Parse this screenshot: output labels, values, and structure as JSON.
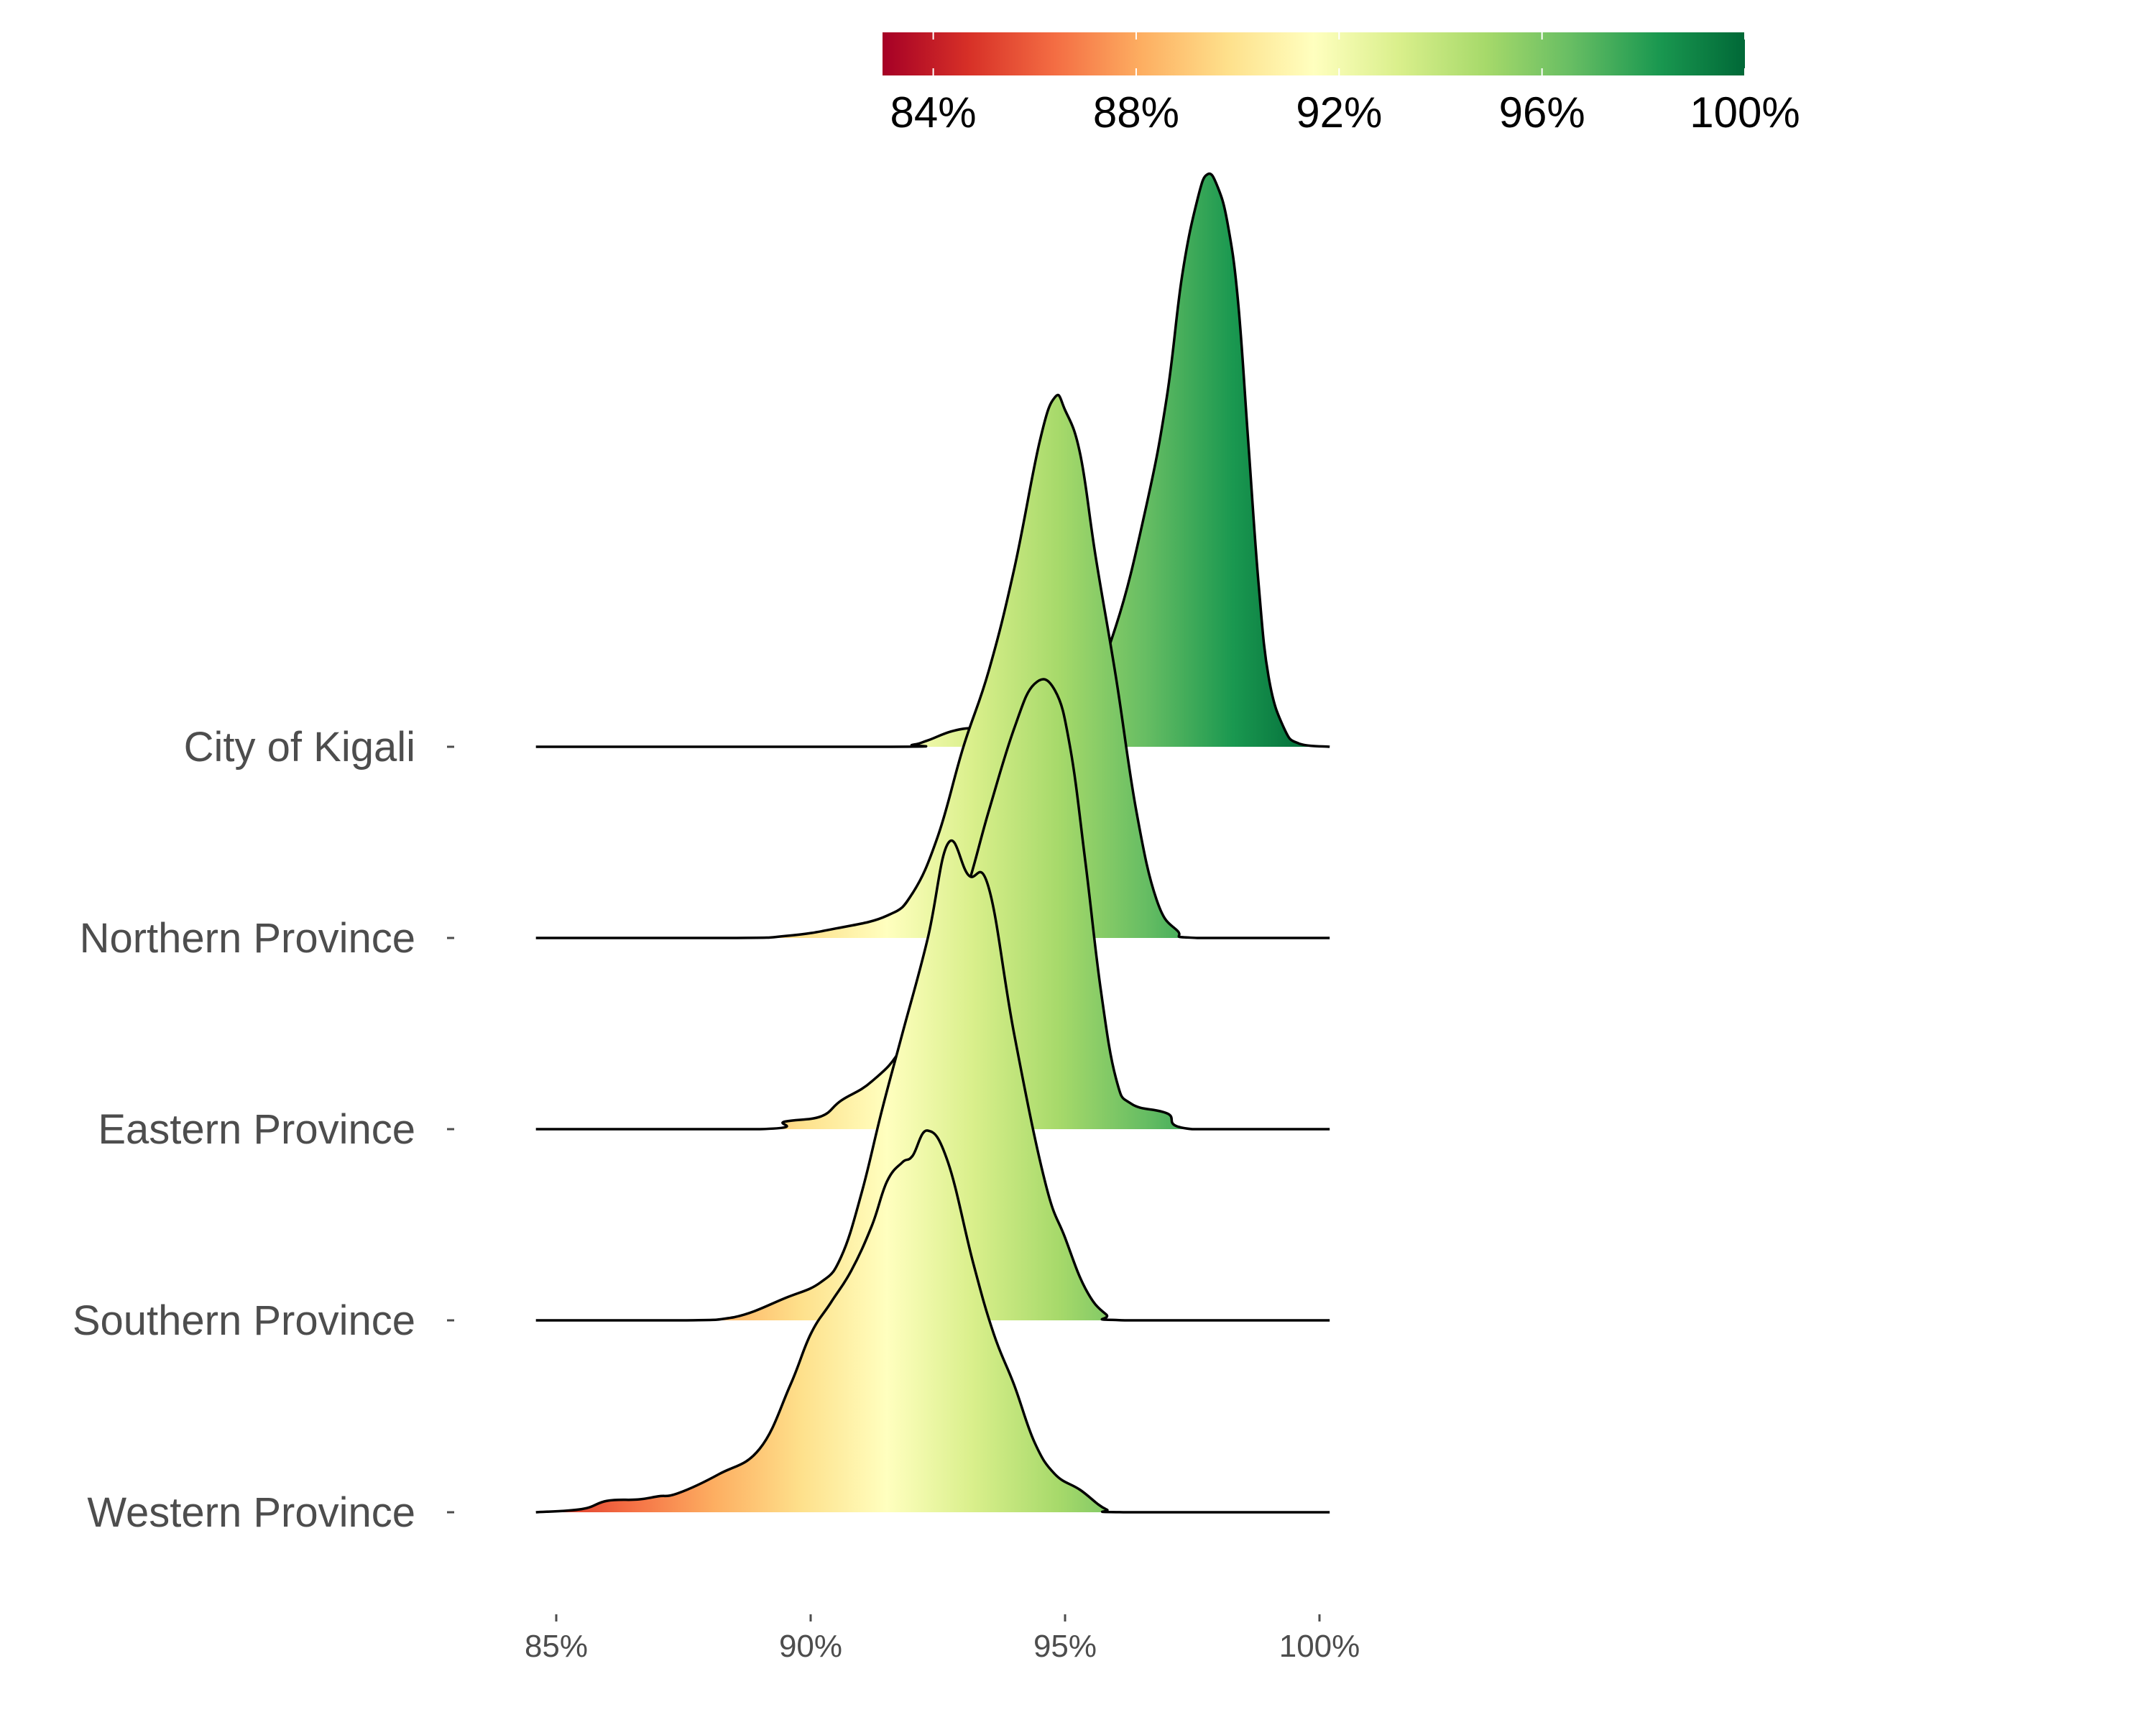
{
  "chart_data": {
    "type": "ridgeline",
    "title": "",
    "xlabel": "",
    "ylabel": "",
    "x_range": [
      84.5,
      100.2
    ],
    "x_ticks": [
      85,
      90,
      95,
      100
    ],
    "x_tick_labels": [
      "85%",
      "90%",
      "95%",
      "100%"
    ],
    "categories": [
      "City of Kigali",
      "Northern Province",
      "Eastern Province",
      "Southern Province",
      "Western Province"
    ],
    "fill_scale": {
      "type": "continuous",
      "palette": "RdYlGn",
      "domain": [
        83.0,
        100.0
      ],
      "ticks": [
        84,
        88,
        92,
        96,
        100
      ],
      "tick_labels": [
        "84%",
        "88%",
        "92%",
        "96%",
        "100%"
      ],
      "colors": [
        "#a50026",
        "#d73027",
        "#f46d43",
        "#fdae61",
        "#fee08b",
        "#ffffbf",
        "#d9ef8b",
        "#a6d96a",
        "#66bd63",
        "#1a9850",
        "#006837"
      ]
    },
    "series": [
      {
        "name": "City of Kigali",
        "density": [
          [
            84.6,
            0
          ],
          [
            91.5,
            0
          ],
          [
            92.0,
            0.003
          ],
          [
            92.3,
            0.01
          ],
          [
            92.8,
            0.025
          ],
          [
            93.3,
            0.03
          ],
          [
            93.8,
            0.028
          ],
          [
            94.5,
            0.03
          ],
          [
            95.3,
            0.06
          ],
          [
            96.0,
            0.19
          ],
          [
            96.6,
            0.38
          ],
          [
            97.0,
            0.55
          ],
          [
            97.3,
            0.74
          ],
          [
            97.6,
            0.86
          ],
          [
            97.8,
            0.9
          ],
          [
            98.0,
            0.88
          ],
          [
            98.2,
            0.82
          ],
          [
            98.4,
            0.7
          ],
          [
            98.6,
            0.48
          ],
          [
            98.8,
            0.26
          ],
          [
            99.0,
            0.11
          ],
          [
            99.3,
            0.03
          ],
          [
            99.6,
            0.005
          ],
          [
            100.2,
            0
          ]
        ]
      },
      {
        "name": "Northern Province",
        "density": [
          [
            84.6,
            0
          ],
          [
            88.4,
            0
          ],
          [
            89.5,
            0.003
          ],
          [
            90.5,
            0.015
          ],
          [
            91.5,
            0.035
          ],
          [
            92.0,
            0.07
          ],
          [
            92.5,
            0.16
          ],
          [
            93.0,
            0.3
          ],
          [
            93.5,
            0.42
          ],
          [
            94.0,
            0.58
          ],
          [
            94.5,
            0.78
          ],
          [
            94.8,
            0.85
          ],
          [
            95.0,
            0.83
          ],
          [
            95.3,
            0.76
          ],
          [
            95.6,
            0.6
          ],
          [
            96.0,
            0.41
          ],
          [
            96.4,
            0.2
          ],
          [
            96.8,
            0.06
          ],
          [
            97.2,
            0.012
          ],
          [
            97.6,
            0
          ],
          [
            100.2,
            0
          ]
        ]
      },
      {
        "name": "Eastern Province",
        "density": [
          [
            84.6,
            0
          ],
          [
            89.0,
            0
          ],
          [
            89.5,
            0.012
          ],
          [
            90.2,
            0.02
          ],
          [
            90.6,
            0.045
          ],
          [
            91.2,
            0.075
          ],
          [
            91.8,
            0.13
          ],
          [
            92.4,
            0.24
          ],
          [
            93.0,
            0.36
          ],
          [
            93.5,
            0.5
          ],
          [
            94.0,
            0.63
          ],
          [
            94.4,
            0.7
          ],
          [
            94.8,
            0.69
          ],
          [
            95.1,
            0.6
          ],
          [
            95.4,
            0.42
          ],
          [
            95.7,
            0.22
          ],
          [
            96.0,
            0.08
          ],
          [
            96.3,
            0.04
          ],
          [
            97.0,
            0.025
          ],
          [
            97.5,
            0
          ],
          [
            100.2,
            0
          ]
        ]
      },
      {
        "name": "Southern Province",
        "density": [
          [
            84.6,
            0
          ],
          [
            87.5,
            0
          ],
          [
            88.5,
            0.005
          ],
          [
            89.5,
            0.035
          ],
          [
            90.2,
            0.06
          ],
          [
            90.6,
            0.1
          ],
          [
            91.0,
            0.2
          ],
          [
            91.4,
            0.33
          ],
          [
            91.8,
            0.45
          ],
          [
            92.3,
            0.6
          ],
          [
            92.7,
            0.75
          ],
          [
            93.1,
            0.7
          ],
          [
            93.5,
            0.68
          ],
          [
            94.0,
            0.45
          ],
          [
            94.6,
            0.22
          ],
          [
            95.0,
            0.13
          ],
          [
            95.4,
            0.05
          ],
          [
            95.8,
            0.01
          ],
          [
            96.2,
            0
          ],
          [
            100.2,
            0
          ]
        ]
      },
      {
        "name": "Western Province",
        "density": [
          [
            84.6,
            0
          ],
          [
            85.5,
            0.005
          ],
          [
            86.0,
            0.018
          ],
          [
            86.6,
            0.02
          ],
          [
            87.0,
            0.025
          ],
          [
            87.4,
            0.03
          ],
          [
            88.2,
            0.06
          ],
          [
            89.0,
            0.1
          ],
          [
            89.6,
            0.2
          ],
          [
            90.0,
            0.28
          ],
          [
            90.4,
            0.33
          ],
          [
            90.8,
            0.38
          ],
          [
            91.2,
            0.45
          ],
          [
            91.5,
            0.52
          ],
          [
            91.8,
            0.55
          ],
          [
            92.0,
            0.56
          ],
          [
            92.3,
            0.6
          ],
          [
            92.7,
            0.55
          ],
          [
            93.2,
            0.39
          ],
          [
            93.6,
            0.28
          ],
          [
            94.0,
            0.2
          ],
          [
            94.4,
            0.11
          ],
          [
            94.8,
            0.06
          ],
          [
            95.3,
            0.035
          ],
          [
            95.8,
            0.005
          ],
          [
            96.2,
            0
          ],
          [
            100.2,
            0
          ]
        ]
      }
    ]
  }
}
